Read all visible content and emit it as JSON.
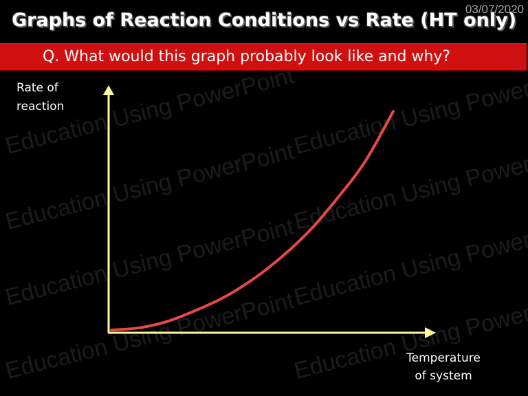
{
  "header": {
    "date": "03/07/2020",
    "title": "Graphs of Reaction Conditions vs Rate (HT only)"
  },
  "question": {
    "text": "Q. What would this graph probably look like and why?"
  },
  "watermark": {
    "text": "Education Using PowerPoint"
  },
  "colors": {
    "background": "#000000",
    "question_bar": "#d01010",
    "axis": "#fff8a0",
    "curve": "#e84848"
  },
  "chart_data": {
    "type": "line",
    "ylabel": [
      "Rate of",
      "reaction"
    ],
    "xlabel": [
      "Temperature",
      "of system"
    ],
    "grid": false,
    "legend": "none",
    "scale": "qualitative (no tick values)",
    "series": [
      {
        "shape": "exponential increase",
        "x": [
          0,
          0.1,
          0.2,
          0.3,
          0.4,
          0.5,
          0.6,
          0.7,
          0.8,
          0.9,
          1.0
        ],
        "y": [
          0,
          0.01,
          0.04,
          0.09,
          0.15,
          0.23,
          0.33,
          0.45,
          0.6,
          0.77,
          1.0
        ]
      }
    ]
  }
}
